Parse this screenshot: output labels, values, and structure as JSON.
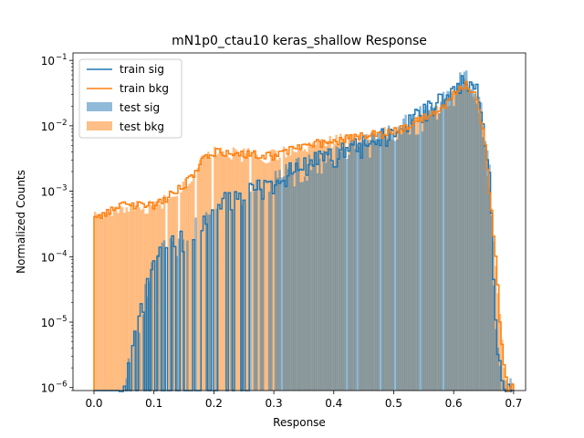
{
  "chart_data": {
    "type": "bar",
    "title": "mN1p0_ctau10 keras_shallow Response",
    "xlabel": "Response",
    "ylabel": "Normalized Counts",
    "xlim": [
      -0.035,
      0.72
    ],
    "ylim": [
      9e-07,
      0.13
    ],
    "yscale": "log",
    "grid": false,
    "legend_position": "top-left",
    "bin_edges_range": [
      0.0,
      0.7
    ],
    "x_ticks": [
      {
        "value": 0.0,
        "label": "0.0"
      },
      {
        "value": 0.1,
        "label": "0.1"
      },
      {
        "value": 0.2,
        "label": "0.2"
      },
      {
        "value": 0.3,
        "label": "0.3"
      },
      {
        "value": 0.4,
        "label": "0.4"
      },
      {
        "value": 0.5,
        "label": "0.5"
      },
      {
        "value": 0.6,
        "label": "0.6"
      },
      {
        "value": 0.7,
        "label": "0.7"
      }
    ],
    "y_ticks": [
      {
        "value": 1e-06,
        "base": "10",
        "exp": "−6"
      },
      {
        "value": 1e-05,
        "base": "10",
        "exp": "−5"
      },
      {
        "value": 0.0001,
        "base": "10",
        "exp": "−4"
      },
      {
        "value": 0.001,
        "base": "10",
        "exp": "−3"
      },
      {
        "value": 0.01,
        "base": "10",
        "exp": "−2"
      },
      {
        "value": 0.1,
        "base": "10",
        "exp": "−1"
      }
    ],
    "series": [
      {
        "name": "train sig",
        "kind": "step",
        "color": "#1f77b4"
      },
      {
        "name": "train bkg",
        "kind": "step",
        "color": "#ff7f0e"
      },
      {
        "name": "test sig",
        "kind": "filled",
        "color": "#1f77b4",
        "opacity": 0.5
      },
      {
        "name": "test bkg",
        "kind": "filled",
        "color": "#ff7f0e",
        "opacity": 0.5
      }
    ],
    "profile_points": {
      "bkg": [
        [
          0.0,
          0.0004
        ],
        [
          0.05,
          0.0006
        ],
        [
          0.1,
          0.0006
        ],
        [
          0.13,
          0.0009
        ],
        [
          0.16,
          0.0015
        ],
        [
          0.18,
          0.003
        ],
        [
          0.2,
          0.004
        ],
        [
          0.3,
          0.0035
        ],
        [
          0.35,
          0.005
        ],
        [
          0.45,
          0.007
        ],
        [
          0.5,
          0.008
        ],
        [
          0.55,
          0.013
        ],
        [
          0.58,
          0.018
        ],
        [
          0.6,
          0.03
        ],
        [
          0.62,
          0.045
        ],
        [
          0.64,
          0.025
        ],
        [
          0.65,
          0.008
        ],
        [
          0.66,
          0.001
        ],
        [
          0.67,
          0.0001
        ],
        [
          0.68,
          5e-06
        ],
        [
          0.69,
          1e-06
        ]
      ],
      "sig": [
        [
          0.03,
          1e-06
        ],
        [
          0.05,
          1e-06
        ],
        [
          0.1,
          0.0001
        ],
        [
          0.15,
          0.0002
        ],
        [
          0.2,
          0.0006
        ],
        [
          0.3,
          0.0015
        ],
        [
          0.35,
          0.0025
        ],
        [
          0.4,
          0.0035
        ],
        [
          0.45,
          0.005
        ],
        [
          0.5,
          0.008
        ],
        [
          0.55,
          0.015
        ],
        [
          0.6,
          0.035
        ],
        [
          0.62,
          0.06
        ],
        [
          0.64,
          0.03
        ],
        [
          0.65,
          0.01
        ],
        [
          0.66,
          0.002
        ],
        [
          0.67,
          1e-05
        ],
        [
          0.68,
          1e-06
        ]
      ]
    }
  }
}
